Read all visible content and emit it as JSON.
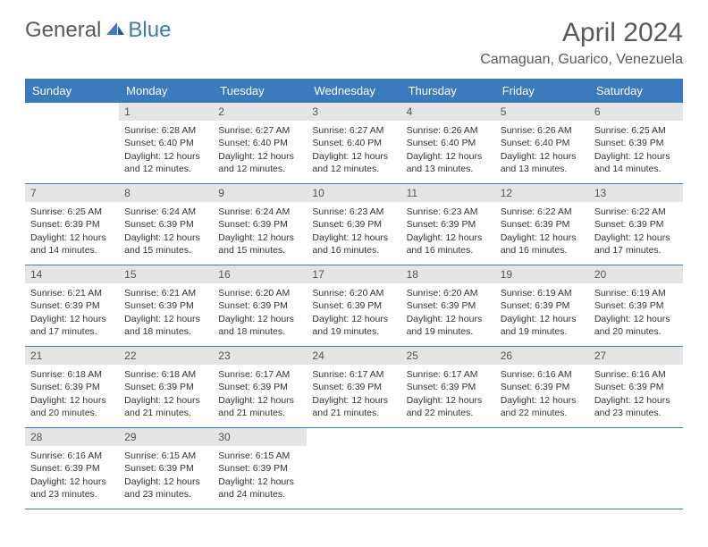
{
  "logo": {
    "general": "General",
    "blue": "Blue"
  },
  "title": "April 2024",
  "location": "Camaguan, Guarico, Venezuela",
  "weekdays": [
    "Sunday",
    "Monday",
    "Tuesday",
    "Wednesday",
    "Thursday",
    "Friday",
    "Saturday"
  ],
  "colors": {
    "header_bg": "#3a7abd",
    "header_text": "#ffffff",
    "daynum_bg": "#e5e5e5",
    "text": "#333333",
    "rule": "#3a7abd"
  },
  "weeks": [
    [
      null,
      {
        "n": "1",
        "sunrise": "6:28 AM",
        "sunset": "6:40 PM",
        "daylight": "12 hours and 12 minutes."
      },
      {
        "n": "2",
        "sunrise": "6:27 AM",
        "sunset": "6:40 PM",
        "daylight": "12 hours and 12 minutes."
      },
      {
        "n": "3",
        "sunrise": "6:27 AM",
        "sunset": "6:40 PM",
        "daylight": "12 hours and 12 minutes."
      },
      {
        "n": "4",
        "sunrise": "6:26 AM",
        "sunset": "6:40 PM",
        "daylight": "12 hours and 13 minutes."
      },
      {
        "n": "5",
        "sunrise": "6:26 AM",
        "sunset": "6:40 PM",
        "daylight": "12 hours and 13 minutes."
      },
      {
        "n": "6",
        "sunrise": "6:25 AM",
        "sunset": "6:39 PM",
        "daylight": "12 hours and 14 minutes."
      }
    ],
    [
      {
        "n": "7",
        "sunrise": "6:25 AM",
        "sunset": "6:39 PM",
        "daylight": "12 hours and 14 minutes."
      },
      {
        "n": "8",
        "sunrise": "6:24 AM",
        "sunset": "6:39 PM",
        "daylight": "12 hours and 15 minutes."
      },
      {
        "n": "9",
        "sunrise": "6:24 AM",
        "sunset": "6:39 PM",
        "daylight": "12 hours and 15 minutes."
      },
      {
        "n": "10",
        "sunrise": "6:23 AM",
        "sunset": "6:39 PM",
        "daylight": "12 hours and 16 minutes."
      },
      {
        "n": "11",
        "sunrise": "6:23 AM",
        "sunset": "6:39 PM",
        "daylight": "12 hours and 16 minutes."
      },
      {
        "n": "12",
        "sunrise": "6:22 AM",
        "sunset": "6:39 PM",
        "daylight": "12 hours and 16 minutes."
      },
      {
        "n": "13",
        "sunrise": "6:22 AM",
        "sunset": "6:39 PM",
        "daylight": "12 hours and 17 minutes."
      }
    ],
    [
      {
        "n": "14",
        "sunrise": "6:21 AM",
        "sunset": "6:39 PM",
        "daylight": "12 hours and 17 minutes."
      },
      {
        "n": "15",
        "sunrise": "6:21 AM",
        "sunset": "6:39 PM",
        "daylight": "12 hours and 18 minutes."
      },
      {
        "n": "16",
        "sunrise": "6:20 AM",
        "sunset": "6:39 PM",
        "daylight": "12 hours and 18 minutes."
      },
      {
        "n": "17",
        "sunrise": "6:20 AM",
        "sunset": "6:39 PM",
        "daylight": "12 hours and 19 minutes."
      },
      {
        "n": "18",
        "sunrise": "6:20 AM",
        "sunset": "6:39 PM",
        "daylight": "12 hours and 19 minutes."
      },
      {
        "n": "19",
        "sunrise": "6:19 AM",
        "sunset": "6:39 PM",
        "daylight": "12 hours and 19 minutes."
      },
      {
        "n": "20",
        "sunrise": "6:19 AM",
        "sunset": "6:39 PM",
        "daylight": "12 hours and 20 minutes."
      }
    ],
    [
      {
        "n": "21",
        "sunrise": "6:18 AM",
        "sunset": "6:39 PM",
        "daylight": "12 hours and 20 minutes."
      },
      {
        "n": "22",
        "sunrise": "6:18 AM",
        "sunset": "6:39 PM",
        "daylight": "12 hours and 21 minutes."
      },
      {
        "n": "23",
        "sunrise": "6:17 AM",
        "sunset": "6:39 PM",
        "daylight": "12 hours and 21 minutes."
      },
      {
        "n": "24",
        "sunrise": "6:17 AM",
        "sunset": "6:39 PM",
        "daylight": "12 hours and 21 minutes."
      },
      {
        "n": "25",
        "sunrise": "6:17 AM",
        "sunset": "6:39 PM",
        "daylight": "12 hours and 22 minutes."
      },
      {
        "n": "26",
        "sunrise": "6:16 AM",
        "sunset": "6:39 PM",
        "daylight": "12 hours and 22 minutes."
      },
      {
        "n": "27",
        "sunrise": "6:16 AM",
        "sunset": "6:39 PM",
        "daylight": "12 hours and 23 minutes."
      }
    ],
    [
      {
        "n": "28",
        "sunrise": "6:16 AM",
        "sunset": "6:39 PM",
        "daylight": "12 hours and 23 minutes."
      },
      {
        "n": "29",
        "sunrise": "6:15 AM",
        "sunset": "6:39 PM",
        "daylight": "12 hours and 23 minutes."
      },
      {
        "n": "30",
        "sunrise": "6:15 AM",
        "sunset": "6:39 PM",
        "daylight": "12 hours and 24 minutes."
      },
      null,
      null,
      null,
      null
    ]
  ],
  "labels": {
    "sunrise": "Sunrise:",
    "sunset": "Sunset:",
    "daylight": "Daylight:"
  }
}
